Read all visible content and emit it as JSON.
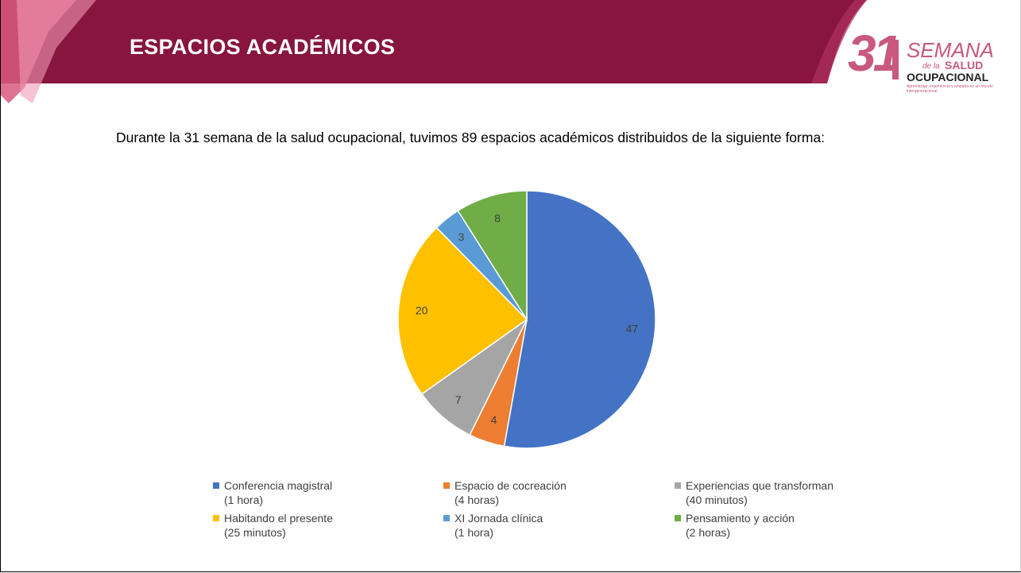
{
  "header": {
    "title": "ESPACIOS ACADÉMICOS"
  },
  "logo": {
    "number": "31",
    "semana": "SEMANA",
    "de_la": "de la",
    "salud": "SALUD",
    "ocupacional": "OCUPACIONAL",
    "tagline": "Aprendizaje, experiencia y empatía en un mundo intergeneracional"
  },
  "intro": "Durante la 31 semana de la salud ocupacional, tuvimos 89 espacios académicos distribuidos de la siguiente forma:",
  "chart_data": {
    "type": "pie",
    "categories": [
      "Conferencia magistral\n(1 hora)",
      "Espacio de cocreación\n(4 horas)",
      "Experiencias que transforman\n(40 minutos)",
      "Habitando el presente\n(25 minutos)",
      "XI Jornada clínica\n(1 hora)",
      "Pensamiento y acción\n(2 horas)"
    ],
    "values": [
      47,
      4,
      7,
      20,
      3,
      8
    ],
    "colors": [
      "#4472c4",
      "#ed7d31",
      "#a5a5a5",
      "#ffc000",
      "#5b9bd5",
      "#70ad47"
    ],
    "legend": "bottom"
  }
}
